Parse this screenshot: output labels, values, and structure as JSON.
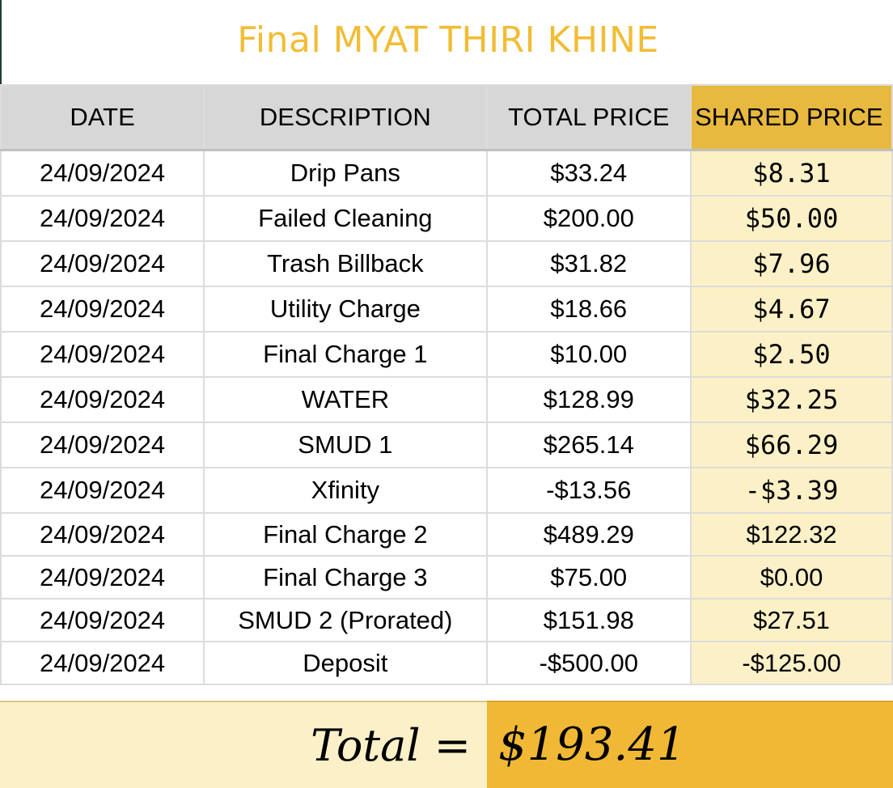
{
  "title": "Final MYAT THIRI KHINE",
  "columns": {
    "date": "DATE",
    "description": "DESCRIPTION",
    "total_price": "TOTAL PRICE",
    "shared_price": "SHARED PRICE"
  },
  "rows": [
    {
      "date": "24/09/2024",
      "description": "Drip Pans",
      "total": "$33.24",
      "shared": "$8.31"
    },
    {
      "date": "24/09/2024",
      "description": "Failed Cleaning",
      "total": "$200.00",
      "shared": "$50.00"
    },
    {
      "date": "24/09/2024",
      "description": "Trash Billback",
      "total": "$31.82",
      "shared": "$7.96"
    },
    {
      "date": "24/09/2024",
      "description": "Utility Charge",
      "total": "$18.66",
      "shared": "$4.67"
    },
    {
      "date": "24/09/2024",
      "description": "Final Charge 1",
      "total": "$10.00",
      "shared": "$2.50"
    },
    {
      "date": "24/09/2024",
      "description": "WATER",
      "total": "$128.99",
      "shared": "$32.25"
    },
    {
      "date": "24/09/2024",
      "description": "SMUD 1",
      "total": "$265.14",
      "shared": "$66.29"
    },
    {
      "date": "24/09/2024",
      "description": "Xfinity",
      "total": "-$13.56",
      "shared": "-$3.39"
    },
    {
      "date": "24/09/2024",
      "description": "Final Charge 2",
      "total": "$489.29",
      "shared": "$122.32"
    },
    {
      "date": "24/09/2024",
      "description": "Final Charge 3",
      "total": "$75.00",
      "shared": "$0.00"
    },
    {
      "date": "24/09/2024",
      "description": "SMUD 2 (Prorated)",
      "total": "$151.98",
      "shared": "$27.51"
    },
    {
      "date": "24/09/2024",
      "description": "Deposit",
      "total": "-$500.00",
      "shared": "-$125.00"
    }
  ],
  "total": {
    "label": "Total =",
    "value": "$193.41"
  },
  "colors": {
    "title": "#f1bd35",
    "header_gray": "#d7d7d7",
    "header_shared": "#e8b93f",
    "shared_cell": "#fcf0c6",
    "total_value_bg": "#f0b834"
  }
}
